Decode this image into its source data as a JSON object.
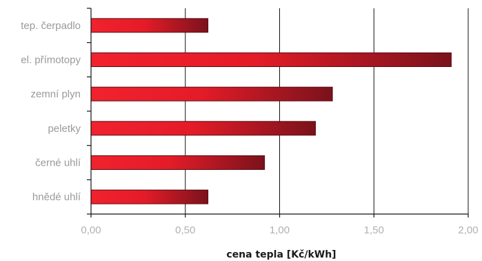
{
  "chart_data": {
    "type": "bar",
    "orientation": "horizontal",
    "categories": [
      "tep. čerpadlo",
      "el. přímotopy",
      "zemní plyn",
      "peletky",
      "černé uhlí",
      "hnědé uhlí"
    ],
    "values": [
      0.62,
      1.91,
      1.28,
      1.19,
      0.92,
      0.62
    ],
    "xlabel": "cena tepla [Kč/kWh]",
    "ylabel": "",
    "xlim": [
      0,
      2
    ],
    "xticks": [
      "0,00",
      "0,50",
      "1,00",
      "1,50",
      "2,00"
    ],
    "grid": true,
    "colors": {
      "bar_start": "#f0222e",
      "bar_end": "#7a121c"
    }
  }
}
